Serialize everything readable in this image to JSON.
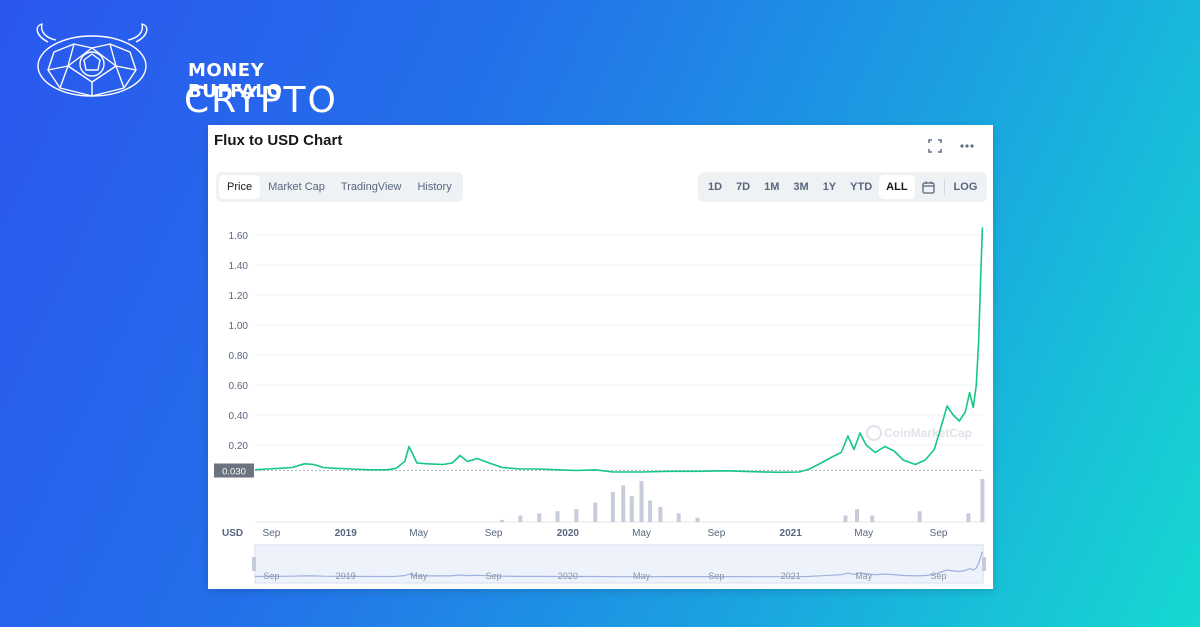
{
  "brand": {
    "line1": "MONEY BUFFALO",
    "line2": "CRYPTO"
  },
  "chart_header": {
    "title": "Flux to USD Chart"
  },
  "tabs": [
    {
      "label": "Price",
      "active": true
    },
    {
      "label": "Market Cap",
      "active": false
    },
    {
      "label": "TradingView",
      "active": false
    },
    {
      "label": "History",
      "active": false
    }
  ],
  "ranges": [
    {
      "label": "1D",
      "active": false
    },
    {
      "label": "7D",
      "active": false
    },
    {
      "label": "1M",
      "active": false
    },
    {
      "label": "3M",
      "active": false
    },
    {
      "label": "1Y",
      "active": false
    },
    {
      "label": "YTD",
      "active": false
    },
    {
      "label": "ALL",
      "active": true
    }
  ],
  "log_label": "LOG",
  "icons": {
    "fullscreen": "fullscreen-icon",
    "more": "more-icon",
    "calendar": "calendar-icon"
  },
  "colors": {
    "line": "#16c784",
    "volume": "#c7ccda",
    "grid": "#eef0f3",
    "badge": "#6b7280"
  },
  "chart_data": {
    "type": "line",
    "title": "Flux to USD Chart",
    "ylabel": "",
    "y_unit_label": "USD",
    "ylim": [
      0,
      1.7
    ],
    "y_ticks": [
      0.2,
      0.4,
      0.6,
      0.8,
      1.0,
      1.2,
      1.4,
      1.6
    ],
    "y_tick_labels": [
      "0.20",
      "0.40",
      "0.60",
      "0.80",
      "1.00",
      "1.20",
      "1.40",
      "1.60"
    ],
    "current_price_label": "0.030",
    "current_price": 0.03,
    "x_tick_labels": [
      "Sep",
      "2019",
      "May",
      "Sep",
      "2020",
      "May",
      "Sep",
      "2021",
      "May",
      "Sep"
    ],
    "x_tick_dates": [
      "2018-09-01",
      "2019-01-01",
      "2019-05-01",
      "2019-09-01",
      "2020-01-01",
      "2020-05-01",
      "2020-09-01",
      "2021-01-01",
      "2021-05-01",
      "2021-09-01"
    ],
    "xlim": [
      "2018-08-05",
      "2021-11-13"
    ],
    "watermark": "CoinMarketCap",
    "grid": true,
    "series": [
      {
        "points": [
          [
            "2018-08-05",
            0.035
          ],
          [
            "2018-08-25",
            0.04
          ],
          [
            "2018-09-15",
            0.045
          ],
          [
            "2018-10-05",
            0.05
          ],
          [
            "2018-10-25",
            0.075
          ],
          [
            "2018-11-10",
            0.07
          ],
          [
            "2018-11-25",
            0.05
          ],
          [
            "2018-12-15",
            0.045
          ],
          [
            "2019-01-10",
            0.04
          ],
          [
            "2019-02-10",
            0.035
          ],
          [
            "2019-03-10",
            0.035
          ],
          [
            "2019-03-25",
            0.045
          ],
          [
            "2019-04-08",
            0.09
          ],
          [
            "2019-04-15",
            0.19
          ],
          [
            "2019-04-20",
            0.15
          ],
          [
            "2019-04-28",
            0.08
          ],
          [
            "2019-05-15",
            0.075
          ],
          [
            "2019-06-10",
            0.07
          ],
          [
            "2019-06-25",
            0.08
          ],
          [
            "2019-07-08",
            0.13
          ],
          [
            "2019-07-20",
            0.09
          ],
          [
            "2019-08-05",
            0.11
          ],
          [
            "2019-08-25",
            0.08
          ],
          [
            "2019-09-15",
            0.05
          ],
          [
            "2019-10-15",
            0.04
          ],
          [
            "2019-11-15",
            0.04
          ],
          [
            "2019-12-15",
            0.035
          ],
          [
            "2020-01-15",
            0.03
          ],
          [
            "2020-02-15",
            0.035
          ],
          [
            "2020-03-15",
            0.02
          ],
          [
            "2020-05-01",
            0.02
          ],
          [
            "2020-06-15",
            0.025
          ],
          [
            "2020-08-01",
            0.025
          ],
          [
            "2020-09-15",
            0.028
          ],
          [
            "2020-11-01",
            0.022
          ],
          [
            "2020-12-15",
            0.018
          ],
          [
            "2021-01-15",
            0.02
          ],
          [
            "2021-02-01",
            0.04
          ],
          [
            "2021-02-20",
            0.08
          ],
          [
            "2021-03-10",
            0.12
          ],
          [
            "2021-03-25",
            0.15
          ],
          [
            "2021-04-05",
            0.26
          ],
          [
            "2021-04-15",
            0.17
          ],
          [
            "2021-04-25",
            0.28
          ],
          [
            "2021-05-05",
            0.2
          ],
          [
            "2021-05-20",
            0.15
          ],
          [
            "2021-06-05",
            0.19
          ],
          [
            "2021-06-20",
            0.16
          ],
          [
            "2021-07-05",
            0.1
          ],
          [
            "2021-07-25",
            0.07
          ],
          [
            "2021-08-10",
            0.1
          ],
          [
            "2021-08-25",
            0.17
          ],
          [
            "2021-09-05",
            0.32
          ],
          [
            "2021-09-15",
            0.46
          ],
          [
            "2021-09-25",
            0.4
          ],
          [
            "2021-10-05",
            0.36
          ],
          [
            "2021-10-15",
            0.42
          ],
          [
            "2021-10-22",
            0.55
          ],
          [
            "2021-10-28",
            0.45
          ],
          [
            "2021-11-02",
            0.6
          ],
          [
            "2021-11-06",
            0.9
          ],
          [
            "2021-11-09",
            1.3
          ],
          [
            "2021-11-12",
            1.65
          ]
        ]
      }
    ],
    "volume": [
      [
        "2019-09-15",
        0.05
      ],
      [
        "2019-10-15",
        0.15
      ],
      [
        "2019-11-15",
        0.2
      ],
      [
        "2019-12-15",
        0.25
      ],
      [
        "2020-01-15",
        0.3
      ],
      [
        "2020-02-15",
        0.45
      ],
      [
        "2020-03-15",
        0.7
      ],
      [
        "2020-04-01",
        0.85
      ],
      [
        "2020-04-15",
        0.6
      ],
      [
        "2020-05-01",
        0.95
      ],
      [
        "2020-05-15",
        0.5
      ],
      [
        "2020-06-01",
        0.35
      ],
      [
        "2020-07-01",
        0.2
      ],
      [
        "2020-08-01",
        0.1
      ],
      [
        "2021-04-01",
        0.15
      ],
      [
        "2021-04-20",
        0.3
      ],
      [
        "2021-05-15",
        0.15
      ],
      [
        "2021-08-01",
        0.25
      ],
      [
        "2021-10-20",
        0.2
      ],
      [
        "2021-11-12",
        1.0
      ]
    ]
  }
}
